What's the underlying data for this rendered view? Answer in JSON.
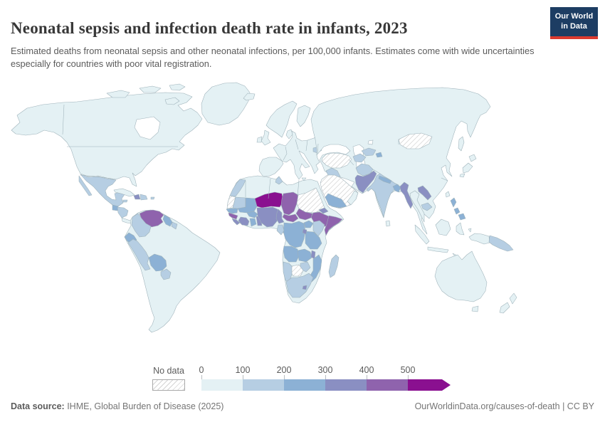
{
  "header": {
    "title": "Neonatal sepsis and infection death rate in infants, 2023",
    "subtitle": "Estimated deaths from neonatal sepsis and other neonatal infections, per 100,000 infants. Estimates come with wide uncertainties especially for countries with poor vital registration.",
    "logo_line1": "Our World",
    "logo_line2": "in Data",
    "logo_bg": "#1d3d63",
    "logo_stripe": "#dc3a2f"
  },
  "legend": {
    "no_data_label": "No data",
    "ticks": [
      "0",
      "100",
      "200",
      "300",
      "400",
      "500"
    ]
  },
  "footer": {
    "source_label": "Data source:",
    "source_text": " IHME, Global Burden of Disease (2025)",
    "rights_text": "OurWorldinData.org/causes-of-death | CC BY"
  },
  "chart_data": {
    "type": "choropleth",
    "title": "Neonatal sepsis and infection death rate in infants, 2023",
    "unit": "deaths per 100,000 infants",
    "year": 2023,
    "legend_position": "bottom",
    "bins": [
      {
        "label": "0",
        "range": [
          0,
          100
        ],
        "color": "#e4f1f4"
      },
      {
        "label": "100",
        "range": [
          100,
          200
        ],
        "color": "#b6cee3"
      },
      {
        "label": "200",
        "range": [
          200,
          300
        ],
        "color": "#8cb1d5"
      },
      {
        "label": "300",
        "range": [
          300,
          400
        ],
        "color": "#8a8fc2"
      },
      {
        "label": "400",
        "range": [
          400,
          500
        ],
        "color": "#8f63ad"
      },
      {
        "label": "500",
        "range": [
          500,
          900
        ],
        "color": "#8a1090"
      }
    ],
    "no_data_style": "white with gray diagonal hatch",
    "border_color": "#9db1b9",
    "regions": {
      "greenland": 0,
      "iceland": 0,
      "north_america": 0,
      "arctic_islands": 0,
      "mexico": 1,
      "guatemala": 2,
      "honduras_nicaragua": 1,
      "costa_rica_panama": 0,
      "cuba": 0,
      "haiti": 3,
      "dominican_republic": 1,
      "jamaica": 1,
      "puerto_rico": 1,
      "south_america": 0,
      "venezuela": 4,
      "colombia": 1,
      "ecuador": 2,
      "peru": 1,
      "bolivia": 2,
      "paraguay": 1,
      "guyana": 2,
      "suriname": 1,
      "europe": 0,
      "iberia": 0,
      "uk": 0,
      "ireland": 0,
      "scandinavia": 0,
      "finland": 0,
      "denmark": 0,
      "sicily": 0,
      "romania": 1,
      "africa": 0,
      "morocco": 1,
      "western_sahara": "no_data",
      "tunisia": 1,
      "mauritania": 1,
      "senegal": 2,
      "guinea": 4,
      "sierra_leone": 3,
      "mali": 2,
      "burkina_faso": 2,
      "cote_divoire": 3,
      "ghana": 2,
      "togo_benin": 3,
      "niger": 5,
      "nigeria": 3,
      "chad": 4,
      "sudan": "no_data",
      "eritrea": 3,
      "ethiopia": 4,
      "somalia": 4,
      "south_sudan": 4,
      "car": 4,
      "cameroon": 3,
      "drc": 2,
      "uganda": 2,
      "kenya": 1,
      "tanzania": 2,
      "rwanda_burundi": 3,
      "gabon_congo": 1,
      "angola": 2,
      "zambia": 2,
      "malawi": 3,
      "mozambique": 2,
      "zimbabwe": 1,
      "botswana": "no_data",
      "namibia": 1,
      "south_africa": 1,
      "lesotho": 3,
      "madagascar": 1,
      "asia": 0,
      "saudi_arabia": "no_data",
      "yemen": 2,
      "oman": 0,
      "iraq": 1,
      "turkey": "no_data",
      "afghanistan": 1,
      "pakistan": 3,
      "india": 1,
      "nepal": 2,
      "bangladesh": 2,
      "sri_lanka": 0,
      "myanmar": 3,
      "thailand": 0,
      "laos": 3,
      "cambodia": 1,
      "mongolia": "no_data",
      "uzbekistan": 1,
      "turkmenistan": 1,
      "tajikistan": 2,
      "japan": 0,
      "taiwan": 0,
      "philippines": 2,
      "indonesia": 0,
      "papua_new_guinea": 1,
      "australia": 0,
      "new_zealand": 0
    }
  }
}
